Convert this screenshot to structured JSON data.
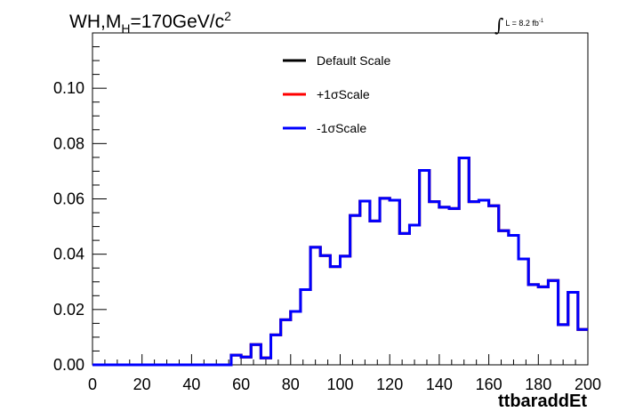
{
  "header": {
    "title_prefix": "WH,M",
    "title_sub": "H",
    "title_mid": "=170GeV/c",
    "title_sup": "2",
    "lumi_int": "∫",
    "lumi_text": "L = 8.2 fb",
    "lumi_sup": "-1"
  },
  "chart_data": {
    "type": "line",
    "style": "step-histogram",
    "xlabel": "ttbaraddEt",
    "ylabel": "",
    "xlim": [
      0,
      200
    ],
    "ylim": [
      0,
      0.12
    ],
    "xticks": [
      0,
      20,
      40,
      60,
      80,
      100,
      120,
      140,
      160,
      180,
      200
    ],
    "xtick_labels": [
      "0",
      "20",
      "40",
      "60",
      "80",
      "100",
      "120",
      "140",
      "160",
      "180",
      "200"
    ],
    "yticks": [
      0,
      0.02,
      0.04,
      0.06,
      0.08,
      0.1
    ],
    "ytick_labels": [
      "0.00",
      "0.02",
      "0.04",
      "0.06",
      "0.08",
      "0.10"
    ],
    "grid": false,
    "legend_position": "top-center",
    "bin_edges": [
      0,
      4,
      8,
      12,
      16,
      20,
      24,
      28,
      32,
      36,
      40,
      44,
      48,
      52,
      56,
      60,
      64,
      68,
      72,
      76,
      80,
      84,
      88,
      92,
      96,
      100,
      104,
      108,
      112,
      116,
      120,
      124,
      128,
      132,
      136,
      140,
      144,
      148,
      152,
      156,
      160,
      164,
      168,
      172,
      176,
      180,
      184,
      188,
      192,
      196,
      200
    ],
    "series": [
      {
        "name": "Default Scale",
        "color": "#000000",
        "values": [
          0,
          0,
          0,
          0,
          0,
          0,
          0,
          0,
          0,
          0,
          0,
          0,
          0,
          0,
          0.0035,
          0.0028,
          0.0073,
          0.0025,
          0.0108,
          0.0163,
          0.0193,
          0.0272,
          0.0425,
          0.0395,
          0.0355,
          0.0393,
          0.054,
          0.0592,
          0.052,
          0.0602,
          0.0595,
          0.0475,
          0.0505,
          0.0703,
          0.059,
          0.057,
          0.0565,
          0.0748,
          0.059,
          0.0595,
          0.0575,
          0.0485,
          0.0468,
          0.0383,
          0.029,
          0.0282,
          0.0305,
          0.0145,
          0.0262,
          0.0128
        ]
      },
      {
        "name": "+1σScale",
        "color": "#ff0000",
        "values": [
          0,
          0,
          0,
          0,
          0,
          0,
          0,
          0,
          0,
          0,
          0,
          0,
          0,
          0,
          0.0035,
          0.0028,
          0.0073,
          0.0025,
          0.0108,
          0.0163,
          0.0193,
          0.0272,
          0.0425,
          0.0395,
          0.0355,
          0.0393,
          0.054,
          0.0592,
          0.052,
          0.0602,
          0.0595,
          0.0475,
          0.0505,
          0.0703,
          0.059,
          0.057,
          0.0565,
          0.0748,
          0.059,
          0.0595,
          0.0575,
          0.0485,
          0.0468,
          0.0383,
          0.029,
          0.0282,
          0.0305,
          0.0145,
          0.0262,
          0.0128
        ]
      },
      {
        "name": "-1σScale",
        "color": "#0000ff",
        "values": [
          0,
          0,
          0,
          0,
          0,
          0,
          0,
          0,
          0,
          0,
          0,
          0,
          0,
          0,
          0.0035,
          0.0028,
          0.0073,
          0.0025,
          0.0108,
          0.0163,
          0.0193,
          0.0272,
          0.0425,
          0.0395,
          0.0355,
          0.0393,
          0.054,
          0.0592,
          0.052,
          0.0602,
          0.0595,
          0.0475,
          0.0505,
          0.0703,
          0.059,
          0.057,
          0.0565,
          0.0748,
          0.059,
          0.0595,
          0.0575,
          0.0485,
          0.0468,
          0.0383,
          0.029,
          0.0282,
          0.0305,
          0.0145,
          0.0262,
          0.0128
        ]
      }
    ]
  }
}
